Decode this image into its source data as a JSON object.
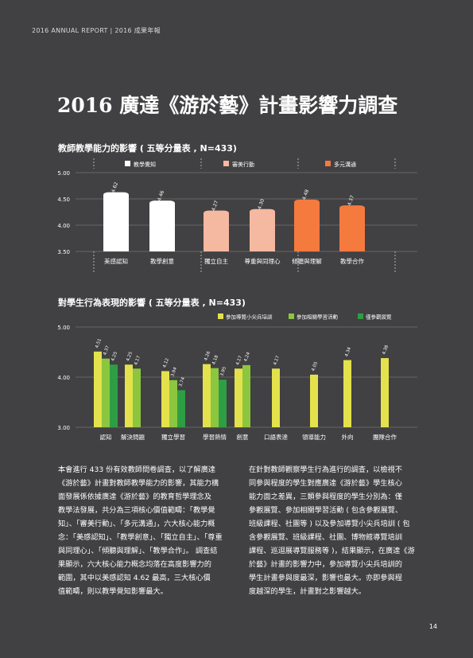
{
  "header": {
    "text": "2016 ANNUAL REPORT | 2016 成果年報"
  },
  "title": "2016 廣達《游於藝》計畫影響力調查",
  "chart_data": [
    {
      "type": "bar",
      "title": "教師教學能力的影響 ( 五等分量表 , N=433)",
      "ylim": [
        3.5,
        5.0
      ],
      "yticks": [
        "5.00",
        "4.50",
        "4.00",
        "3.50"
      ],
      "legend": [
        {
          "name": "教學覺知",
          "color": "#ffffff"
        },
        {
          "name": "審美行動",
          "color": "#f5b8a0"
        },
        {
          "name": "多元溝通",
          "color": "#f47a3e"
        }
      ],
      "categories": [
        "美感認知",
        "教學創意",
        "獨立自主",
        "尊重與同理心",
        "傾聽與理解",
        "教學合作"
      ],
      "values": [
        4.62,
        4.46,
        4.27,
        4.3,
        4.48,
        4.37
      ],
      "value_labels": [
        "4.62",
        "4.46",
        "4.27",
        "4.30",
        "4.48",
        "4.37"
      ],
      "groups": [
        0,
        0,
        1,
        1,
        2,
        2
      ]
    },
    {
      "type": "bar",
      "title": "對學生行為表現的影響 ( 五等分量表 , N=433)",
      "ylim": [
        3.0,
        5.0
      ],
      "yticks": [
        "5.00",
        "4.00",
        "3.00"
      ],
      "series": [
        {
          "name": "參加導覽小尖兵培訓",
          "color": "#e3e24c",
          "values": [
            4.51,
            4.25,
            4.12,
            4.26,
            4.17,
            4.17,
            4.05,
            4.34,
            4.38
          ],
          "labels": [
            "4.51",
            "4.25",
            "4.12",
            "4.26",
            "4.17",
            "4.17",
            "4.05",
            "4.34",
            "4.38"
          ]
        },
        {
          "name": "參加相關學習活動",
          "color": "#8cc63f",
          "values": [
            4.37,
            4.17,
            3.94,
            4.18,
            4.24,
            null,
            null,
            null,
            null
          ],
          "labels": [
            "4.37",
            "4.17",
            "3.94",
            "4.18",
            "4.24",
            "",
            "",
            "",
            ""
          ]
        },
        {
          "name": "僅參觀展覽",
          "color": "#2e9e45",
          "values": [
            4.25,
            null,
            3.74,
            3.95,
            null,
            null,
            null,
            null,
            null
          ],
          "labels": [
            "4.25",
            "",
            "3.74",
            "3.95",
            "",
            "",
            "",
            "",
            ""
          ]
        }
      ],
      "categories": [
        "認知",
        "解決問題",
        "獨立學習",
        "學習熱情",
        "創意",
        "口語表達",
        "領導能力",
        "外向",
        "團隊合作"
      ]
    }
  ],
  "paragraphs": {
    "left": [
      "本會進行 433 份有效教師問卷調查，以了解廣達",
      "《游於藝》計畫對教師教學能力的影響，其能力構",
      "面發展係依據廣達《游於藝》的教育哲學理念及",
      "教學法發展，共分為三項核心價值範疇：「教學覺",
      "知」、「審美行動」、「多元溝通」，六大核心能力概",
      "念：「美感認知」、「教學創意」、「獨立自主」、「尊重",
      "與同理心」、「傾聽與理解」、「教學合作」。 調查結",
      "果顯示，六大核心能力概念均落在高度影響力的",
      "範圍，其中以美感認知 4.62 最高，三大核心價",
      "值範疇，則以教學覺知影響最大。"
    ],
    "right": [
      "在針對教師觀察學生行為進行的調查，以檢視不",
      "同參與程度的學生對應廣達《游於藝》學生核心",
      "能力面之差異，三類參與程度的學生分別為：僅",
      "參觀展覽、參加相關學習活動 ( 包含參觀展覽、",
      "班級課程、社團等 ) 以及參加導覽小尖兵培訓 ( 包",
      "含參觀展覽、班級課程、社團、博物館導覽培訓",
      "課程、巡迴展導覽服務等 )，結果顯示，在廣達《游",
      "於藝》計畫的影響力中，參加導覽小尖兵培訓的",
      "學生計畫參與度最深，影響也最大。亦即參與程",
      "度越深的學生，計畫對之影響越大。"
    ]
  },
  "page_number": "14"
}
